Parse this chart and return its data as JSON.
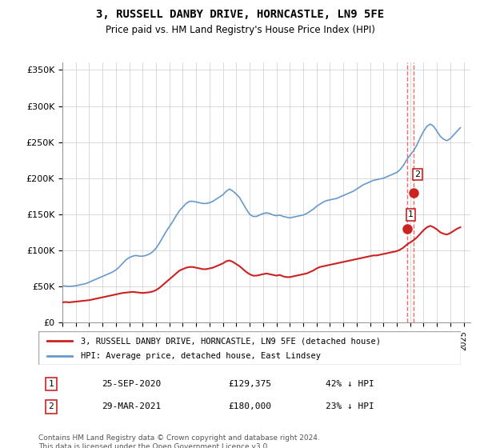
{
  "title": "3, RUSSELL DANBY DRIVE, HORNCASTLE, LN9 5FE",
  "subtitle": "Price paid vs. HM Land Registry's House Price Index (HPI)",
  "title_fontsize": 11,
  "subtitle_fontsize": 9,
  "hpi_color": "#6699cc",
  "price_color": "#cc2222",
  "marker_color": "#cc2222",
  "vline_color": "#ff6666",
  "background_color": "#ffffff",
  "grid_color": "#cccccc",
  "ylim": [
    0,
    360000
  ],
  "yticks": [
    0,
    50000,
    100000,
    150000,
    200000,
    250000,
    300000,
    350000
  ],
  "ytick_labels": [
    "£0",
    "£50K",
    "£100K",
    "£150K",
    "£200K",
    "£250K",
    "£300K",
    "£350K"
  ],
  "sale1": {
    "date_idx": 25.75,
    "price": 129375,
    "label": "1",
    "text": "25-SEP-2020",
    "amount": "£129,375",
    "hpi_pct": "42% ↓ HPI"
  },
  "sale2": {
    "date_idx": 26.25,
    "price": 180000,
    "label": "2",
    "text": "29-MAR-2021",
    "amount": "£180,000",
    "hpi_pct": "23% ↓ HPI"
  },
  "legend_line1": "3, RUSSELL DANBY DRIVE, HORNCASTLE, LN9 5FE (detached house)",
  "legend_line2": "HPI: Average price, detached house, East Lindsey",
  "footnote": "Contains HM Land Registry data © Crown copyright and database right 2024.\nThis data is licensed under the Open Government Licence v3.0.",
  "hpi_data_x": [
    1995.0,
    1995.25,
    1995.5,
    1995.75,
    1996.0,
    1996.25,
    1996.5,
    1996.75,
    1997.0,
    1997.25,
    1997.5,
    1997.75,
    1998.0,
    1998.25,
    1998.5,
    1998.75,
    1999.0,
    1999.25,
    1999.5,
    1999.75,
    2000.0,
    2000.25,
    2000.5,
    2000.75,
    2001.0,
    2001.25,
    2001.5,
    2001.75,
    2002.0,
    2002.25,
    2002.5,
    2002.75,
    2003.0,
    2003.25,
    2003.5,
    2003.75,
    2004.0,
    2004.25,
    2004.5,
    2004.75,
    2005.0,
    2005.25,
    2005.5,
    2005.75,
    2006.0,
    2006.25,
    2006.5,
    2006.75,
    2007.0,
    2007.25,
    2007.5,
    2007.75,
    2008.0,
    2008.25,
    2008.5,
    2008.75,
    2009.0,
    2009.25,
    2009.5,
    2009.75,
    2010.0,
    2010.25,
    2010.5,
    2010.75,
    2011.0,
    2011.25,
    2011.5,
    2011.75,
    2012.0,
    2012.25,
    2012.5,
    2012.75,
    2013.0,
    2013.25,
    2013.5,
    2013.75,
    2014.0,
    2014.25,
    2014.5,
    2014.75,
    2015.0,
    2015.25,
    2015.5,
    2015.75,
    2016.0,
    2016.25,
    2016.5,
    2016.75,
    2017.0,
    2017.25,
    2017.5,
    2017.75,
    2018.0,
    2018.25,
    2018.5,
    2018.75,
    2019.0,
    2019.25,
    2019.5,
    2019.75,
    2020.0,
    2020.25,
    2020.5,
    2020.75,
    2021.0,
    2021.25,
    2021.5,
    2021.75,
    2022.0,
    2022.25,
    2022.5,
    2022.75,
    2023.0,
    2023.25,
    2023.5,
    2023.75,
    2024.0,
    2024.25,
    2024.5,
    2024.75
  ],
  "hpi_data_y": [
    51000,
    50500,
    50000,
    50500,
    51000,
    52000,
    53000,
    54000,
    56000,
    58000,
    60000,
    62000,
    64000,
    66000,
    68000,
    70000,
    73000,
    77000,
    82000,
    87000,
    90000,
    92000,
    93000,
    92000,
    92000,
    93000,
    95000,
    98000,
    103000,
    110000,
    118000,
    126000,
    133000,
    140000,
    148000,
    155000,
    160000,
    165000,
    168000,
    168000,
    167000,
    166000,
    165000,
    165000,
    166000,
    168000,
    171000,
    174000,
    177000,
    182000,
    185000,
    182000,
    178000,
    173000,
    165000,
    157000,
    150000,
    147000,
    147000,
    149000,
    151000,
    152000,
    151000,
    149000,
    148000,
    149000,
    147000,
    146000,
    145000,
    146000,
    147000,
    148000,
    149000,
    151000,
    154000,
    157000,
    161000,
    164000,
    167000,
    169000,
    170000,
    171000,
    172000,
    174000,
    176000,
    178000,
    180000,
    182000,
    185000,
    188000,
    191000,
    193000,
    195000,
    197000,
    198000,
    199000,
    200000,
    202000,
    204000,
    206000,
    208000,
    212000,
    218000,
    226000,
    232000,
    238000,
    246000,
    256000,
    265000,
    272000,
    275000,
    272000,
    265000,
    258000,
    254000,
    252000,
    255000,
    260000,
    265000,
    270000
  ],
  "price_data_x": [
    1995.0,
    1995.25,
    1995.5,
    1995.75,
    1996.0,
    1996.25,
    1996.5,
    1996.75,
    1997.0,
    1997.25,
    1997.5,
    1997.75,
    1998.0,
    1998.25,
    1998.5,
    1998.75,
    1999.0,
    1999.25,
    1999.5,
    1999.75,
    2000.0,
    2000.25,
    2000.5,
    2000.75,
    2001.0,
    2001.25,
    2001.5,
    2001.75,
    2002.0,
    2002.25,
    2002.5,
    2002.75,
    2003.0,
    2003.25,
    2003.5,
    2003.75,
    2004.0,
    2004.25,
    2004.5,
    2004.75,
    2005.0,
    2005.25,
    2005.5,
    2005.75,
    2006.0,
    2006.25,
    2006.5,
    2006.75,
    2007.0,
    2007.25,
    2007.5,
    2007.75,
    2008.0,
    2008.25,
    2008.5,
    2008.75,
    2009.0,
    2009.25,
    2009.5,
    2009.75,
    2010.0,
    2010.25,
    2010.5,
    2010.75,
    2011.0,
    2011.25,
    2011.5,
    2011.75,
    2012.0,
    2012.25,
    2012.5,
    2012.75,
    2013.0,
    2013.25,
    2013.5,
    2013.75,
    2014.0,
    2014.25,
    2014.5,
    2014.75,
    2015.0,
    2015.25,
    2015.5,
    2015.75,
    2016.0,
    2016.25,
    2016.5,
    2016.75,
    2017.0,
    2017.25,
    2017.5,
    2017.75,
    2018.0,
    2018.25,
    2018.5,
    2018.75,
    2019.0,
    2019.25,
    2019.5,
    2019.75,
    2020.0,
    2020.25,
    2020.5,
    2020.75,
    2021.0,
    2021.25,
    2021.5,
    2021.75,
    2022.0,
    2022.25,
    2022.5,
    2022.75,
    2023.0,
    2023.25,
    2023.5,
    2023.75,
    2024.0,
    2024.25,
    2024.5,
    2024.75
  ],
  "price_data_y": [
    28000,
    28500,
    28000,
    28500,
    29000,
    29500,
    30000,
    30500,
    31000,
    32000,
    33000,
    34000,
    35000,
    36000,
    37000,
    38000,
    39000,
    40000,
    41000,
    41500,
    42000,
    42500,
    42000,
    41500,
    41000,
    41500,
    42000,
    43000,
    45000,
    48000,
    52000,
    56000,
    60000,
    64000,
    68000,
    72000,
    74000,
    76000,
    77000,
    77000,
    76000,
    75000,
    74000,
    74000,
    75000,
    76000,
    78000,
    80000,
    82000,
    85000,
    86000,
    84000,
    81000,
    78000,
    74000,
    70000,
    67000,
    65000,
    65000,
    66000,
    67000,
    68000,
    67000,
    66000,
    65000,
    66000,
    64000,
    63000,
    63000,
    64000,
    65000,
    66000,
    67000,
    68000,
    70000,
    72000,
    75000,
    77000,
    78000,
    79000,
    80000,
    81000,
    82000,
    83000,
    84000,
    85000,
    86000,
    87000,
    88000,
    89000,
    90000,
    91000,
    92000,
    93000,
    93000,
    94000,
    95000,
    96000,
    97000,
    98000,
    99000,
    101000,
    104000,
    108000,
    111000,
    114000,
    118000,
    123000,
    128000,
    132000,
    134000,
    132000,
    129000,
    125000,
    123000,
    122000,
    124000,
    127000,
    130000,
    132000
  ]
}
